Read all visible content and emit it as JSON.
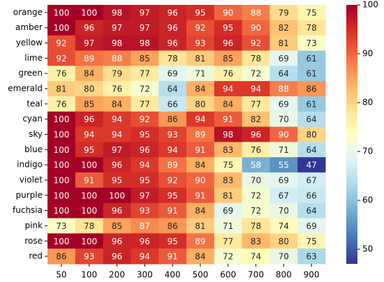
{
  "chart_data": {
    "type": "heatmap",
    "rows": [
      "orange",
      "amber",
      "yellow",
      "lime",
      "green",
      "emerald",
      "teal",
      "cyan",
      "sky",
      "blue",
      "indigo",
      "violet",
      "purple",
      "fuchsia",
      "pink",
      "rose",
      "red"
    ],
    "columns": [
      "50",
      "100",
      "200",
      "300",
      "400",
      "500",
      "600",
      "700",
      "800",
      "900"
    ],
    "values": [
      [
        100,
        100,
        98,
        97,
        96,
        95,
        90,
        88,
        79,
        75
      ],
      [
        100,
        96,
        97,
        97,
        96,
        92,
        95,
        90,
        82,
        78
      ],
      [
        92,
        97,
        98,
        98,
        96,
        93,
        96,
        92,
        81,
        73
      ],
      [
        92,
        89,
        88,
        85,
        78,
        81,
        85,
        78,
        69,
        61
      ],
      [
        76,
        84,
        79,
        77,
        69,
        71,
        76,
        72,
        64,
        61
      ],
      [
        81,
        80,
        76,
        72,
        64,
        84,
        94,
        94,
        88,
        86
      ],
      [
        76,
        85,
        84,
        77,
        66,
        80,
        84,
        77,
        69,
        61
      ],
      [
        100,
        96,
        94,
        92,
        86,
        94,
        91,
        82,
        70,
        64
      ],
      [
        100,
        94,
        94,
        95,
        93,
        89,
        98,
        96,
        90,
        80
      ],
      [
        100,
        95,
        97,
        96,
        94,
        91,
        83,
        76,
        71,
        64
      ],
      [
        100,
        100,
        96,
        94,
        89,
        84,
        75,
        58,
        55,
        47
      ],
      [
        100,
        91,
        95,
        95,
        92,
        90,
        83,
        70,
        69,
        67
      ],
      [
        100,
        100,
        100,
        97,
        95,
        91,
        81,
        72,
        67,
        66
      ],
      [
        100,
        100,
        96,
        93,
        91,
        84,
        69,
        72,
        70,
        64
      ],
      [
        73,
        78,
        85,
        87,
        86,
        81,
        71,
        78,
        74,
        69
      ],
      [
        100,
        100,
        96,
        96,
        95,
        89,
        77,
        83,
        80,
        75
      ],
      [
        86,
        93,
        96,
        94,
        91,
        84,
        72,
        74,
        70,
        63
      ]
    ],
    "colormap": [
      "#313695",
      "#4575b4",
      "#74add1",
      "#abd9e9",
      "#e0f3f8",
      "#ffffbf",
      "#fee090",
      "#fdae61",
      "#f46d43",
      "#d73027",
      "#a50026"
    ],
    "clim": [
      47,
      100
    ],
    "cticks": [
      50,
      60,
      70,
      80,
      90,
      100
    ]
  }
}
